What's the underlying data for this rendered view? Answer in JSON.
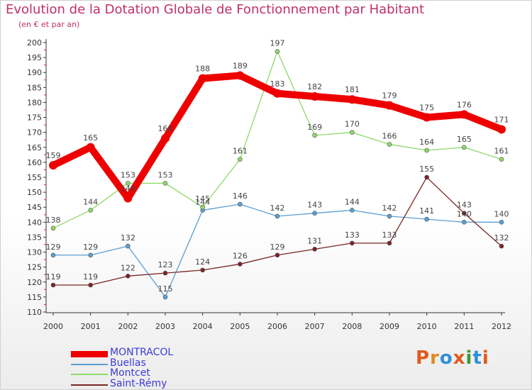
{
  "title": "Evolution de la Dotation Globale de Fonctionnement par Habitant",
  "subtitle": "(en € et par an)",
  "logo": {
    "text": "Proxiti",
    "colors": [
      "#e05a1f",
      "#e08a1f",
      "#2f8fd8",
      "#e05a1f",
      "#3a9a3a",
      "#2f8fd8",
      "#e05a1f"
    ]
  },
  "chart_data": {
    "type": "line",
    "x": [
      "2000",
      "2001",
      "2002",
      "2003",
      "2004",
      "2005",
      "2006",
      "2007",
      "2008",
      "2009",
      "2010",
      "2011",
      "2012"
    ],
    "ylim": [
      110,
      200
    ],
    "yticks": [
      110,
      115,
      120,
      125,
      130,
      135,
      140,
      145,
      150,
      155,
      160,
      165,
      170,
      175,
      180,
      185,
      190,
      195,
      200
    ],
    "grid": false,
    "legend": "bottom-left",
    "series": [
      {
        "name": "MONTRACOL",
        "color": "#ee0000",
        "values": [
          159,
          165,
          148,
          168,
          188,
          189,
          183,
          182,
          181,
          179,
          175,
          176,
          171
        ]
      },
      {
        "name": "Buellas",
        "color": "#5c9fd0",
        "values": [
          129,
          129,
          132,
          115,
          144,
          146,
          142,
          143,
          144,
          142,
          141,
          140,
          140
        ]
      },
      {
        "name": "Montcet",
        "color": "#8ed96a",
        "values": [
          138,
          144,
          153,
          153,
          145,
          161,
          197,
          169,
          170,
          166,
          164,
          165,
          161
        ]
      },
      {
        "name": "Saint-Rémy",
        "color": "#7a2424",
        "values": [
          119,
          119,
          122,
          123,
          124,
          126,
          129,
          131,
          133,
          133,
          155,
          143,
          132
        ]
      }
    ]
  }
}
